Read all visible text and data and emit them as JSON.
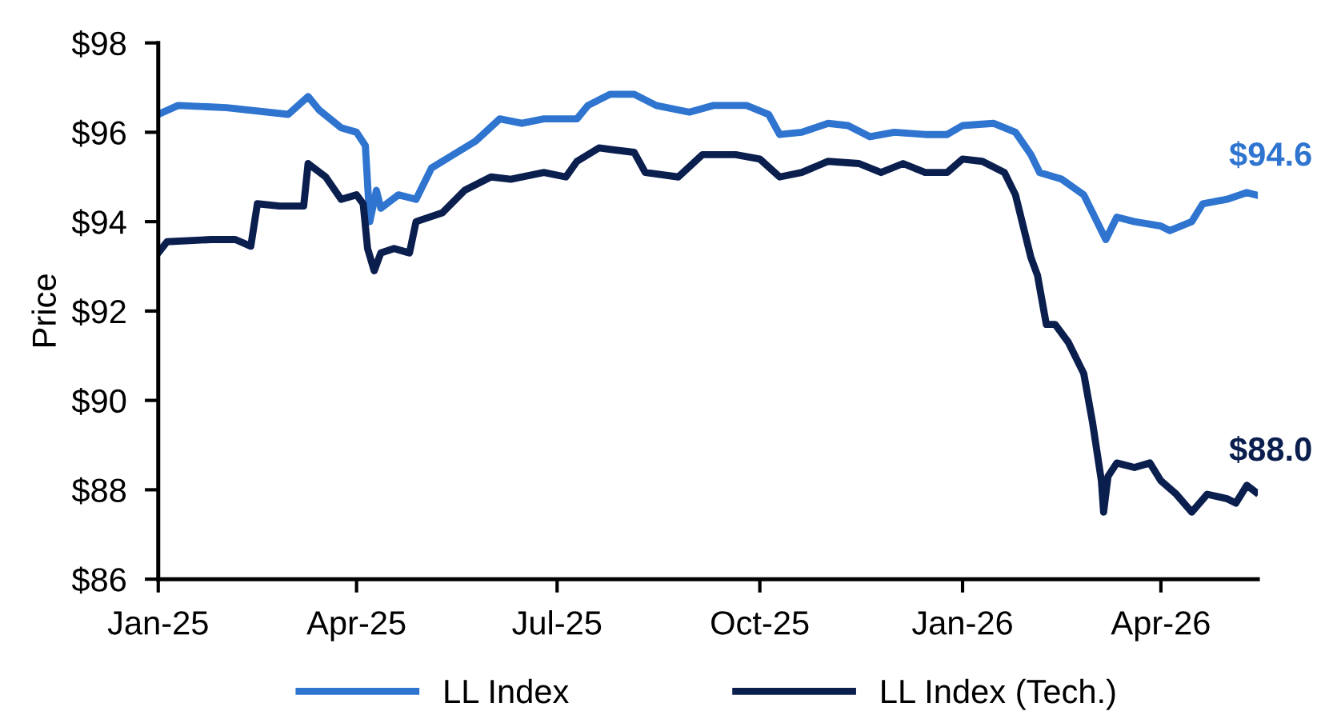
{
  "chart_data": {
    "type": "line",
    "ylabel": "Price",
    "xlim": [
      "2025-01-01",
      "2026-05-15"
    ],
    "ylim": [
      86,
      98
    ],
    "yticks": [
      {
        "value": 86,
        "label": "$86"
      },
      {
        "value": 88,
        "label": "$88"
      },
      {
        "value": 90,
        "label": "$90"
      },
      {
        "value": 92,
        "label": "$92"
      },
      {
        "value": 94,
        "label": "$94"
      },
      {
        "value": 96,
        "label": "$96"
      },
      {
        "value": 98,
        "label": "$98"
      }
    ],
    "xticks": [
      {
        "value": "2025-01-01",
        "label": "Jan-25"
      },
      {
        "value": "2025-04-01",
        "label": "Apr-25"
      },
      {
        "value": "2025-07-01",
        "label": "Jul-25"
      },
      {
        "value": "2025-10-01",
        "label": "Oct-25"
      },
      {
        "value": "2026-01-01",
        "label": "Jan-26"
      },
      {
        "value": "2026-04-01",
        "label": "Apr-26"
      }
    ],
    "grid": false,
    "legend": "bottom",
    "marker": "none",
    "line_style": "solid",
    "series": [
      {
        "name": "LL Index",
        "color": "#2f75d0",
        "x": [
          "2025-01-01",
          "2025-01-10",
          "2025-02-01",
          "2025-03-01",
          "2025-03-10",
          "2025-03-15",
          "2025-03-25",
          "2025-04-01",
          "2025-04-05",
          "2025-04-07",
          "2025-04-10",
          "2025-04-12",
          "2025-04-20",
          "2025-04-28",
          "2025-05-05",
          "2025-05-15",
          "2025-05-25",
          "2025-06-05",
          "2025-06-15",
          "2025-06-25",
          "2025-07-10",
          "2025-07-15",
          "2025-07-25",
          "2025-08-05",
          "2025-08-15",
          "2025-08-30",
          "2025-09-10",
          "2025-09-25",
          "2025-10-05",
          "2025-10-10",
          "2025-10-20",
          "2025-11-01",
          "2025-11-10",
          "2025-11-20",
          "2025-12-01",
          "2025-12-15",
          "2025-12-25",
          "2026-01-01",
          "2026-01-15",
          "2026-01-25",
          "2026-02-01",
          "2026-02-05",
          "2026-02-15",
          "2026-02-25",
          "2026-03-03",
          "2026-03-07",
          "2026-03-12",
          "2026-03-20",
          "2026-04-01",
          "2026-04-05",
          "2026-04-15",
          "2026-04-20",
          "2026-05-01",
          "2026-05-10",
          "2026-05-14"
        ],
        "values": [
          96.4,
          96.6,
          96.55,
          96.4,
          96.8,
          96.5,
          96.1,
          96.0,
          95.7,
          94.0,
          94.7,
          94.3,
          94.6,
          94.5,
          95.2,
          95.5,
          95.8,
          96.3,
          96.2,
          96.3,
          96.3,
          96.6,
          96.85,
          96.85,
          96.6,
          96.45,
          96.6,
          96.6,
          96.4,
          95.95,
          96.0,
          96.2,
          96.15,
          95.9,
          96.0,
          95.95,
          95.95,
          96.15,
          96.2,
          96.0,
          95.5,
          95.1,
          94.95,
          94.6,
          94.0,
          93.6,
          94.1,
          94.0,
          93.9,
          93.8,
          94.0,
          94.4,
          94.5,
          94.65,
          94.6
        ]
      },
      {
        "name": "LL Index (Tech.)",
        "color": "#0b1f4f",
        "x": [
          "2025-01-01",
          "2025-01-05",
          "2025-01-25",
          "2025-02-05",
          "2025-02-12",
          "2025-02-15",
          "2025-02-25",
          "2025-03-08",
          "2025-03-10",
          "2025-03-18",
          "2025-03-25",
          "2025-04-01",
          "2025-04-04",
          "2025-04-06",
          "2025-04-09",
          "2025-04-12",
          "2025-04-18",
          "2025-04-25",
          "2025-04-28",
          "2025-05-10",
          "2025-05-20",
          "2025-06-01",
          "2025-06-10",
          "2025-06-25",
          "2025-07-05",
          "2025-07-10",
          "2025-07-20",
          "2025-08-05",
          "2025-08-10",
          "2025-08-25",
          "2025-09-05",
          "2025-09-20",
          "2025-10-01",
          "2025-10-10",
          "2025-10-20",
          "2025-11-01",
          "2025-11-15",
          "2025-11-25",
          "2025-12-05",
          "2025-12-15",
          "2025-12-25",
          "2026-01-01",
          "2026-01-10",
          "2026-01-20",
          "2026-01-25",
          "2026-02-01",
          "2026-02-04",
          "2026-02-08",
          "2026-02-12",
          "2026-02-18",
          "2026-02-25",
          "2026-03-01",
          "2026-03-05",
          "2026-03-06",
          "2026-03-08",
          "2026-03-12",
          "2026-03-20",
          "2026-03-27",
          "2026-04-01",
          "2026-04-08",
          "2026-04-15",
          "2026-04-22",
          "2026-05-01",
          "2026-05-05",
          "2026-05-10",
          "2026-05-14"
        ],
        "values": [
          93.3,
          93.55,
          93.6,
          93.6,
          93.45,
          94.4,
          94.35,
          94.35,
          95.3,
          95.0,
          94.5,
          94.6,
          94.4,
          93.4,
          92.9,
          93.3,
          93.4,
          93.3,
          94.0,
          94.2,
          94.7,
          95.0,
          94.95,
          95.1,
          95.0,
          95.35,
          95.65,
          95.55,
          95.1,
          95.0,
          95.5,
          95.5,
          95.4,
          95.0,
          95.1,
          95.35,
          95.3,
          95.1,
          95.3,
          95.1,
          95.1,
          95.4,
          95.35,
          95.1,
          94.6,
          93.2,
          92.8,
          91.7,
          91.7,
          91.3,
          90.6,
          89.5,
          88.2,
          87.5,
          88.3,
          88.6,
          88.5,
          88.6,
          88.2,
          87.9,
          87.5,
          87.9,
          87.8,
          87.7,
          88.1,
          87.95
        ]
      }
    ],
    "annotations": [
      {
        "text": "$94.6",
        "x": "2026-05-14",
        "y": 94.6
      },
      {
        "text": "$88.0",
        "x": "2026-05-14",
        "y": 88.0
      }
    ]
  }
}
